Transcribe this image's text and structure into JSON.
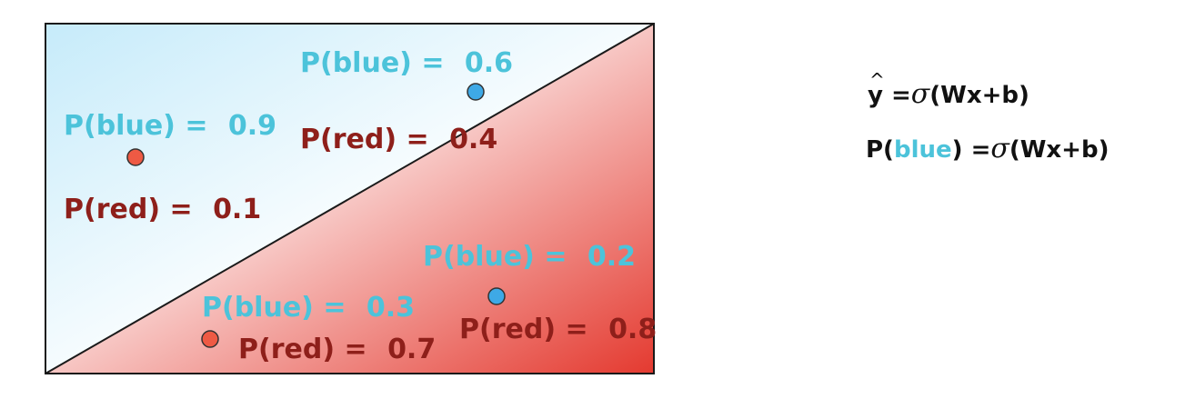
{
  "colors": {
    "blue_text": "#4cc3da",
    "red_text": "#8e1f1a",
    "blue_point": "#3ea9e6",
    "red_point": "#ee5a44",
    "blue_region": "#cfeefa",
    "red_region": "#e8413a"
  },
  "points": [
    {
      "id": "top-left",
      "color": "red",
      "p_blue_label": "P(blue) = ",
      "p_blue": "0.9",
      "p_red_label": "P(red) = ",
      "p_red": "0.1"
    },
    {
      "id": "top-right",
      "color": "blue",
      "p_blue_label": "P(blue) = ",
      "p_blue": "0.6",
      "p_red_label": "P(red) = ",
      "p_red": "0.4"
    },
    {
      "id": "bottom-left",
      "color": "red",
      "p_blue_label": "P(blue) = ",
      "p_blue": "0.3",
      "p_red_label": "P(red) = ",
      "p_red": "0.7"
    },
    {
      "id": "bottom-right",
      "color": "blue",
      "p_blue_label": "P(blue) = ",
      "p_blue": "0.2",
      "p_red_label": "P(red) = ",
      "p_red": "0.8"
    }
  ],
  "formulas": {
    "line1": {
      "y": "y",
      "hat": "^",
      "eq": " =",
      "sigma": "σ",
      "rest": "(Wx+b)"
    },
    "line2": {
      "p_open": "P(",
      "blue": "blue",
      "p_close": ")",
      "eq": " =",
      "sigma": "σ",
      "rest": "(Wx+b)"
    }
  }
}
